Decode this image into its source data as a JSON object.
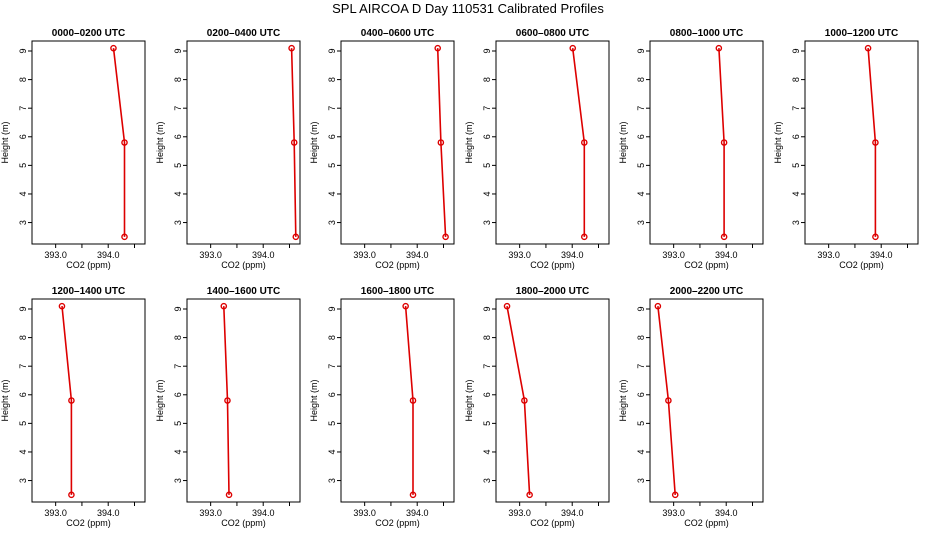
{
  "title": "SPL AIRCOA D  Day 110531  Calibrated Profiles",
  "colors": {
    "line": "#dd0000",
    "marker": "#dd0000",
    "frame": "#000000",
    "text": "#000000"
  },
  "chart_data": [
    {
      "type": "line",
      "title": "0000–0200 UTC",
      "xlabel": "CO2 (ppm)",
      "ylabel": "Height (m)",
      "xlim": [
        392.55,
        394.7
      ],
      "ylim": [
        2.25,
        9.35
      ],
      "xticks": [
        {
          "v": 393.0,
          "label": "393.0"
        },
        {
          "v": 393.5,
          "label": ""
        },
        {
          "v": 394.0,
          "label": "394.0"
        },
        {
          "v": 394.5,
          "label": ""
        }
      ],
      "yticks": [
        "3",
        "4",
        "5",
        "6",
        "7",
        "8",
        "9"
      ],
      "heights": [
        2.5,
        5.8,
        9.1
      ],
      "co2": [
        394.31,
        394.31,
        394.1
      ]
    },
    {
      "type": "line",
      "title": "0200–0400 UTC",
      "xlabel": "CO2 (ppm)",
      "ylabel": "Height (m)",
      "xlim": [
        392.55,
        394.7
      ],
      "ylim": [
        2.25,
        9.35
      ],
      "xticks": [
        {
          "v": 393.0,
          "label": "393.0"
        },
        {
          "v": 393.5,
          "label": ""
        },
        {
          "v": 394.0,
          "label": "394.0"
        },
        {
          "v": 394.5,
          "label": ""
        }
      ],
      "yticks": [
        "3",
        "4",
        "5",
        "6",
        "7",
        "8",
        "9"
      ],
      "heights": [
        2.5,
        5.8,
        9.1
      ],
      "co2": [
        394.62,
        394.59,
        394.54
      ]
    },
    {
      "type": "line",
      "title": "0400–0600 UTC",
      "xlabel": "CO2 (ppm)",
      "ylabel": "Height (m)",
      "xlim": [
        392.55,
        394.7
      ],
      "ylim": [
        2.25,
        9.35
      ],
      "xticks": [
        {
          "v": 393.0,
          "label": "393.0"
        },
        {
          "v": 393.5,
          "label": ""
        },
        {
          "v": 394.0,
          "label": "394.0"
        },
        {
          "v": 394.5,
          "label": ""
        }
      ],
      "yticks": [
        "3",
        "4",
        "5",
        "6",
        "7",
        "8",
        "9"
      ],
      "heights": [
        2.5,
        5.8,
        9.1
      ],
      "co2": [
        394.54,
        394.45,
        394.39
      ]
    },
    {
      "type": "line",
      "title": "0600–0800 UTC",
      "xlabel": "CO2 (ppm)",
      "ylabel": "Height (m)",
      "xlim": [
        392.55,
        394.7
      ],
      "ylim": [
        2.25,
        9.35
      ],
      "xticks": [
        {
          "v": 393.0,
          "label": "393.0"
        },
        {
          "v": 393.5,
          "label": ""
        },
        {
          "v": 394.0,
          "label": "394.0"
        },
        {
          "v": 394.5,
          "label": ""
        }
      ],
      "yticks": [
        "3",
        "4",
        "5",
        "6",
        "7",
        "8",
        "9"
      ],
      "heights": [
        2.5,
        5.8,
        9.1
      ],
      "co2": [
        394.23,
        394.23,
        394.01
      ]
    },
    {
      "type": "line",
      "title": "0800–1000 UTC",
      "xlabel": "CO2 (ppm)",
      "ylabel": "Height (m)",
      "xlim": [
        392.55,
        394.7
      ],
      "ylim": [
        2.25,
        9.35
      ],
      "xticks": [
        {
          "v": 393.0,
          "label": "393.0"
        },
        {
          "v": 393.5,
          "label": ""
        },
        {
          "v": 394.0,
          "label": "394.0"
        },
        {
          "v": 394.5,
          "label": ""
        }
      ],
      "yticks": [
        "3",
        "4",
        "5",
        "6",
        "7",
        "8",
        "9"
      ],
      "heights": [
        2.5,
        5.8,
        9.1
      ],
      "co2": [
        393.96,
        393.96,
        393.86
      ]
    },
    {
      "type": "line",
      "title": "1000–1200 UTC",
      "xlabel": "CO2 (ppm)",
      "ylabel": "Height (m)",
      "xlim": [
        392.55,
        394.7
      ],
      "ylim": [
        2.25,
        9.35
      ],
      "xticks": [
        {
          "v": 393.0,
          "label": "393.0"
        },
        {
          "v": 393.5,
          "label": ""
        },
        {
          "v": 394.0,
          "label": "394.0"
        },
        {
          "v": 394.5,
          "label": ""
        }
      ],
      "yticks": [
        "3",
        "4",
        "5",
        "6",
        "7",
        "8",
        "9"
      ],
      "heights": [
        2.5,
        5.8,
        9.1
      ],
      "co2": [
        393.89,
        393.89,
        393.75
      ]
    },
    {
      "type": "line",
      "title": "1200–1400 UTC",
      "xlabel": "CO2 (ppm)",
      "ylabel": "Height (m)",
      "xlim": [
        392.55,
        394.7
      ],
      "ylim": [
        2.25,
        9.35
      ],
      "xticks": [
        {
          "v": 393.0,
          "label": "393.0"
        },
        {
          "v": 393.5,
          "label": ""
        },
        {
          "v": 394.0,
          "label": "394.0"
        },
        {
          "v": 394.5,
          "label": ""
        }
      ],
      "yticks": [
        "3",
        "4",
        "5",
        "6",
        "7",
        "8",
        "9"
      ],
      "heights": [
        2.5,
        5.8,
        9.1
      ],
      "co2": [
        393.3,
        393.3,
        393.12
      ]
    },
    {
      "type": "line",
      "title": "1400–1600 UTC",
      "xlabel": "CO2 (ppm)",
      "ylabel": "Height (m)",
      "xlim": [
        392.55,
        394.7
      ],
      "ylim": [
        2.25,
        9.35
      ],
      "xticks": [
        {
          "v": 393.0,
          "label": "393.0"
        },
        {
          "v": 393.5,
          "label": ""
        },
        {
          "v": 394.0,
          "label": "394.0"
        },
        {
          "v": 394.5,
          "label": ""
        }
      ],
      "yticks": [
        "3",
        "4",
        "5",
        "6",
        "7",
        "8",
        "9"
      ],
      "heights": [
        2.5,
        5.8,
        9.1
      ],
      "co2": [
        393.35,
        393.32,
        393.25
      ]
    },
    {
      "type": "line",
      "title": "1600–1800 UTC",
      "xlabel": "CO2 (ppm)",
      "ylabel": "Height (m)",
      "xlim": [
        392.55,
        394.7
      ],
      "ylim": [
        2.25,
        9.35
      ],
      "xticks": [
        {
          "v": 393.0,
          "label": "393.0"
        },
        {
          "v": 393.5,
          "label": ""
        },
        {
          "v": 394.0,
          "label": "394.0"
        },
        {
          "v": 394.5,
          "label": ""
        }
      ],
      "yticks": [
        "3",
        "4",
        "5",
        "6",
        "7",
        "8",
        "9"
      ],
      "heights": [
        2.5,
        5.8,
        9.1
      ],
      "co2": [
        393.92,
        393.92,
        393.78
      ]
    },
    {
      "type": "line",
      "title": "1800–2000 UTC",
      "xlabel": "CO2 (ppm)",
      "ylabel": "Height (m)",
      "xlim": [
        392.55,
        394.7
      ],
      "ylim": [
        2.25,
        9.35
      ],
      "xticks": [
        {
          "v": 393.0,
          "label": "393.0"
        },
        {
          "v": 393.5,
          "label": ""
        },
        {
          "v": 394.0,
          "label": "394.0"
        },
        {
          "v": 394.5,
          "label": ""
        }
      ],
      "yticks": [
        "3",
        "4",
        "5",
        "6",
        "7",
        "8",
        "9"
      ],
      "heights": [
        2.5,
        5.8,
        9.1
      ],
      "co2": [
        393.19,
        393.09,
        392.76
      ]
    },
    {
      "type": "line",
      "title": "2000–2200 UTC",
      "xlabel": "CO2 (ppm)",
      "ylabel": "Height (m)",
      "xlim": [
        392.55,
        394.7
      ],
      "ylim": [
        2.25,
        9.35
      ],
      "xticks": [
        {
          "v": 393.0,
          "label": "393.0"
        },
        {
          "v": 393.5,
          "label": ""
        },
        {
          "v": 394.0,
          "label": "394.0"
        },
        {
          "v": 394.5,
          "label": ""
        }
      ],
      "yticks": [
        "3",
        "4",
        "5",
        "6",
        "7",
        "8",
        "9"
      ],
      "heights": [
        2.5,
        5.8,
        9.1
      ],
      "co2": [
        393.03,
        392.9,
        392.7
      ]
    }
  ]
}
